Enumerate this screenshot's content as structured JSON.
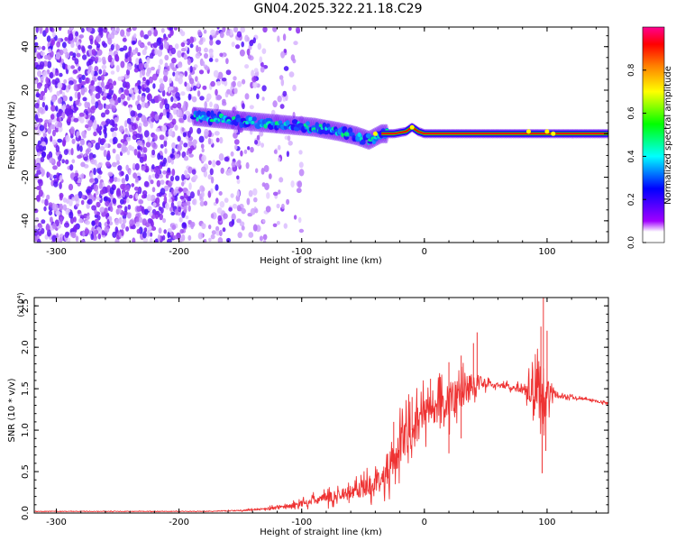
{
  "figure_title": "GN04.2025.322.21.18.C29",
  "chart_data": [
    {
      "type": "heatmap",
      "title": "",
      "xlabel": "Height of straight line (km)",
      "ylabel": "Frequency (Hz)",
      "xlim": [
        -318,
        150
      ],
      "ylim": [
        -50,
        49
      ],
      "xticks": [
        -300,
        -200,
        -100,
        0,
        100
      ],
      "xtick_labels": [
        "-300",
        "-200",
        "-100",
        "0",
        "100"
      ],
      "yticks": [
        -40,
        -20,
        0,
        20,
        40
      ],
      "ytick_labels": [
        "-40",
        "-20",
        "0",
        "20",
        "40"
      ],
      "colorbar": {
        "label": "Normalized spectral amplitude",
        "range": [
          0,
          1
        ],
        "ticks": [
          0,
          0.2,
          0.4,
          0.6,
          0.8
        ],
        "tick_labels": [
          "0.0",
          "0.2",
          "0.4",
          "0.6",
          "0.8"
        ],
        "colormap": [
          "#ffffff",
          "#d9b8ff",
          "#8a2be2",
          "#0000ff",
          "#00e5ff",
          "#00ff00",
          "#ffff00",
          "#ff8c00",
          "#ff0000",
          "#ff00aa"
        ]
      },
      "noise_region_x": [
        -318,
        -110
      ],
      "signal_track": {
        "x": [
          -188,
          -170,
          -150,
          -130,
          -110,
          -90,
          -70,
          -55,
          -45,
          -35,
          -25,
          -15,
          -10,
          -5,
          0,
          20,
          50,
          80,
          100,
          120,
          150
        ],
        "freq": [
          8,
          7,
          6,
          5,
          4,
          3,
          1,
          -1,
          -3,
          0,
          0,
          1,
          3,
          1,
          0,
          0,
          0,
          0,
          0,
          0,
          0
        ],
        "amplitude": [
          0.4,
          0.45,
          0.45,
          0.4,
          0.42,
          0.45,
          0.45,
          0.45,
          0.5,
          0.75,
          0.8,
          0.85,
          0.9,
          0.85,
          0.9,
          0.95,
          0.95,
          0.95,
          0.95,
          0.95,
          0.95
        ]
      }
    },
    {
      "type": "line",
      "title": "",
      "xlabel": "Height of straight line (km)",
      "ylabel": "SNR (10 * v/v)",
      "y_multiplier": "(x10⁴)",
      "xlim": [
        -318,
        150
      ],
      "ylim": [
        0,
        2.6
      ],
      "xticks": [
        -300,
        -200,
        -100,
        0,
        100
      ],
      "xtick_labels": [
        "-300",
        "-200",
        "-100",
        "0",
        "100"
      ],
      "yticks": [
        0,
        0.5,
        1.0,
        1.5,
        2.0,
        2.5
      ],
      "ytick_labels": [
        "0.0",
        "0.5",
        "1.0",
        "1.5",
        "2.0",
        "2.5"
      ],
      "color": "#ee3333",
      "series": [
        {
          "name": "SNR",
          "x": [
            -318,
            -250,
            -180,
            -150,
            -130,
            -110,
            -100,
            -80,
            -60,
            -50,
            -40,
            -30,
            -25,
            -20,
            -10,
            0,
            10,
            20,
            30,
            40,
            50,
            60,
            70,
            80,
            90,
            95,
            100,
            105,
            110,
            120,
            130,
            140,
            150
          ],
          "values": [
            0.02,
            0.02,
            0.02,
            0.03,
            0.05,
            0.08,
            0.12,
            0.18,
            0.25,
            0.3,
            0.38,
            0.5,
            0.6,
            0.8,
            1.0,
            1.2,
            1.28,
            1.35,
            1.45,
            1.55,
            1.55,
            1.55,
            1.52,
            1.5,
            1.48,
            1.4,
            1.45,
            1.42,
            1.42,
            1.4,
            1.38,
            1.35,
            1.32
          ],
          "noise_amplitude": [
            0.005,
            0.005,
            0.005,
            0.01,
            0.02,
            0.04,
            0.06,
            0.09,
            0.12,
            0.15,
            0.2,
            0.25,
            0.3,
            0.35,
            0.35,
            0.3,
            0.3,
            0.3,
            0.3,
            0.25,
            0.08,
            0.05,
            0.05,
            0.08,
            0.3,
            0.55,
            0.3,
            0.1,
            0.05,
            0.03,
            0.02,
            0.02,
            0.02
          ],
          "peaks": [
            {
              "x": -25,
              "y": 1.1
            },
            {
              "x": -10,
              "y": 1.4
            },
            {
              "x": 5,
              "y": 1.62
            },
            {
              "x": 20,
              "y": 1.82
            },
            {
              "x": 30,
              "y": 1.9
            },
            {
              "x": 40,
              "y": 2.05
            },
            {
              "x": 43,
              "y": 2.18
            },
            {
              "x": 95,
              "y": 2.25
            },
            {
              "x": 97,
              "y": 2.6
            },
            {
              "x": 100,
              "y": 2.2
            }
          ],
          "troughs": [
            {
              "x": 20,
              "y": 0.72
            },
            {
              "x": 30,
              "y": 0.9
            },
            {
              "x": 96,
              "y": 0.48
            },
            {
              "x": 99,
              "y": 0.75
            }
          ]
        }
      ]
    }
  ]
}
